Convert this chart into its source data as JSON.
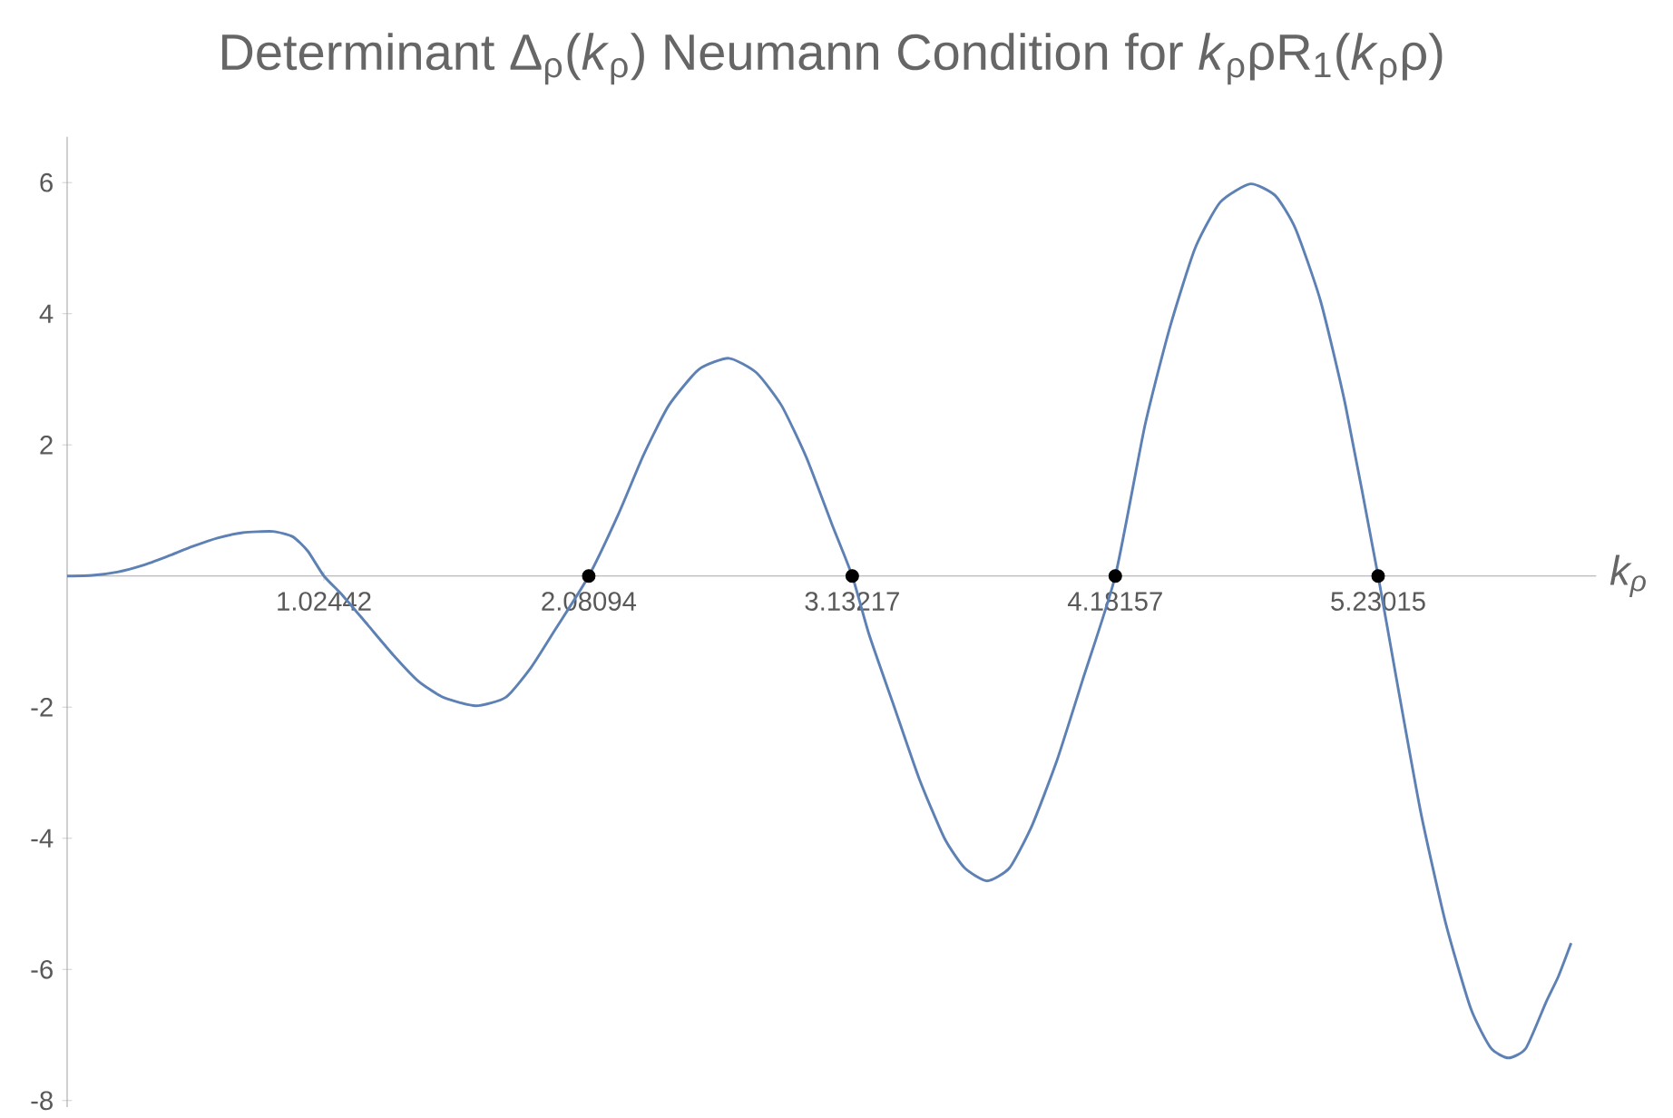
{
  "chart_data": {
    "type": "line",
    "title": "Determinant Δ$_{ρ}$(*k*$_{ρ}$) Neumann Condition for *k*$_{ρ}$ρR$_{1}$(*k*$_{ρ}$ρ)",
    "xlabel": "*k*$_{ρ}$",
    "xlim": [
      0,
      6.1
    ],
    "ylim": [
      -8.1,
      6.7
    ],
    "xticks": [
      1.02442,
      2.08094,
      3.13217,
      4.18157,
      5.23015
    ],
    "yticks": [
      -8,
      -6,
      -4,
      -2,
      2,
      4,
      6
    ],
    "series": [
      {
        "color": "#5e81b5",
        "marker": "none",
        "x": [
          0,
          0.1,
          0.2,
          0.3,
          0.4,
          0.5,
          0.6,
          0.7,
          0.82,
          0.9,
          0.96,
          1.02442,
          1.1,
          1.2,
          1.3,
          1.4,
          1.5,
          1.63,
          1.75,
          1.85,
          1.95,
          2.08094,
          2.2,
          2.3,
          2.4,
          2.52,
          2.64,
          2.75,
          2.85,
          2.95,
          3.05,
          3.13217,
          3.2,
          3.3,
          3.4,
          3.5,
          3.58,
          3.67,
          3.76,
          3.85,
          3.95,
          4.05,
          4.18157,
          4.3,
          4.4,
          4.5,
          4.6,
          4.72,
          4.82,
          4.9,
          5.0,
          5.1,
          5.23015,
          5.3,
          5.4,
          5.5,
          5.6,
          5.68,
          5.75,
          5.82,
          5.9,
          5.95,
          6.0
        ],
        "values": [
          0,
          0.01,
          0.06,
          0.16,
          0.3,
          0.45,
          0.58,
          0.66,
          0.68,
          0.6,
          0.38,
          0,
          -0.3,
          -0.75,
          -1.2,
          -1.6,
          -1.85,
          -1.98,
          -1.85,
          -1.4,
          -0.8,
          0,
          0.95,
          1.85,
          2.6,
          3.15,
          3.32,
          3.1,
          2.6,
          1.8,
          0.8,
          0,
          -0.9,
          -2.0,
          -3.1,
          -4.0,
          -4.45,
          -4.65,
          -4.45,
          -3.8,
          -2.8,
          -1.6,
          0,
          2.3,
          3.8,
          5.0,
          5.7,
          5.98,
          5.8,
          5.3,
          4.2,
          2.6,
          0,
          -1.5,
          -3.6,
          -5.3,
          -6.6,
          -7.2,
          -7.35,
          -7.2,
          -6.5,
          -6.1,
          -5.6
        ]
      },
      {
        "type": "scatter",
        "color": "#000000",
        "marker": "circle",
        "x": [
          2.08094,
          3.13217,
          4.18157,
          5.23015
        ],
        "values": [
          0,
          0,
          0,
          0
        ]
      }
    ]
  }
}
